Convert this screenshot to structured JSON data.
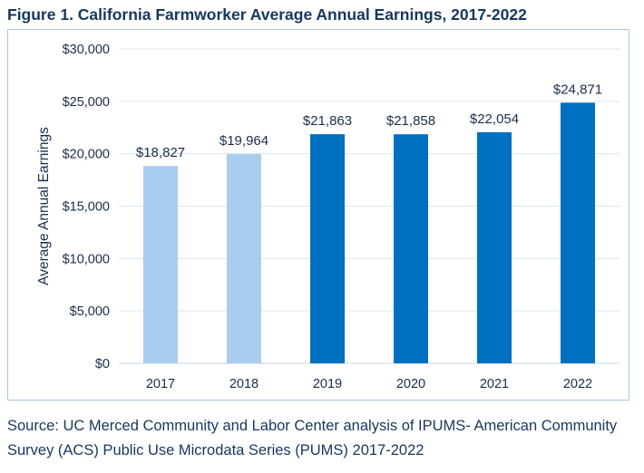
{
  "figure": {
    "title": "Figure 1. California Farmworker Average Annual Earnings, 2017-2022",
    "source": "Source: UC Merced Community and Labor Center analysis of IPUMS- American Community Survey (ACS) Public Use Microdata Series (PUMS) 2017-2022"
  },
  "chart_data": {
    "type": "bar",
    "title": "",
    "xlabel": "",
    "ylabel": "Average Annual Earnings",
    "categories": [
      "2017",
      "2018",
      "2019",
      "2020",
      "2021",
      "2022"
    ],
    "values": [
      18827,
      19964,
      21863,
      21858,
      22054,
      24871
    ],
    "data_labels": [
      "$18,827",
      "$19,964",
      "$21,863",
      "$21,858",
      "$22,054",
      "$24,871"
    ],
    "ylim": [
      0,
      30000
    ],
    "yticks": [
      0,
      5000,
      10000,
      15000,
      20000,
      25000,
      30000
    ],
    "ytick_labels": [
      "$0",
      "$5,000",
      "$10,000",
      "$15,000",
      "$20,000",
      "$25,000",
      "$30,000"
    ],
    "grid": true,
    "bar_colors": [
      "#a9cdef",
      "#a9cdef",
      "#0070c0",
      "#0070c0",
      "#0070c0",
      "#0070c0"
    ],
    "grid_color": "#d9e6f2",
    "text_color": "#1a2d4d"
  }
}
